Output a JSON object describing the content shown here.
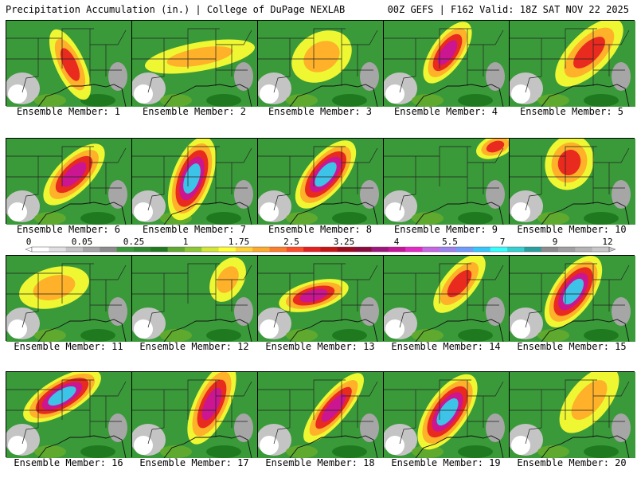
{
  "header": {
    "title_left": "Precipitation Accumulation (in.) | College of DuPage NEXLAB",
    "title_right": "00Z GEFS | F162 Valid: 18Z SAT NOV 22 2025"
  },
  "colorbar": {
    "labels": [
      "0",
      "0.05",
      "0.25",
      "1",
      "1.75",
      "2.5",
      "3.25",
      "4",
      "5.5",
      "7",
      "9",
      "12"
    ],
    "colors": [
      "#ffffff",
      "#e0e0e0",
      "#c4c4c4",
      "#a6a6a6",
      "#8c8c8c",
      "#3a9a3a",
      "#2e8a2e",
      "#1f7a1f",
      "#5faa2e",
      "#8cc832",
      "#d2e632",
      "#ffff32",
      "#ffd232",
      "#ffaa28",
      "#ff7d28",
      "#ff4b28",
      "#e61e1e",
      "#c81414",
      "#a00a1e",
      "#8c0a3c",
      "#a0147d",
      "#c8149b",
      "#e628c8",
      "#c864e6",
      "#9b82f0",
      "#6e9bff",
      "#32c8ff",
      "#32ffff",
      "#32d2d2",
      "#28a0a0",
      "#8c8c8c",
      "#a0a0a0",
      "#b4b4b4",
      "#c8c8c8"
    ]
  },
  "members": [
    {
      "id": 1,
      "label": "Ensemble Member: 1"
    },
    {
      "id": 2,
      "label": "Ensemble Member: 2"
    },
    {
      "id": 3,
      "label": "Ensemble Member: 3"
    },
    {
      "id": 4,
      "label": "Ensemble Member: 4"
    },
    {
      "id": 5,
      "label": "Ensemble Member: 5"
    },
    {
      "id": 6,
      "label": "Ensemble Member: 6"
    },
    {
      "id": 7,
      "label": "Ensemble Member: 7"
    },
    {
      "id": 8,
      "label": "Ensemble Member: 8"
    },
    {
      "id": 9,
      "label": "Ensemble Member: 9"
    },
    {
      "id": 10,
      "label": "Ensemble Member: 10"
    },
    {
      "id": 11,
      "label": "Ensemble Member: 11"
    },
    {
      "id": 12,
      "label": "Ensemble Member: 12"
    },
    {
      "id": 13,
      "label": "Ensemble Member: 13"
    },
    {
      "id": 14,
      "label": "Ensemble Member: 14"
    },
    {
      "id": 15,
      "label": "Ensemble Member: 15"
    },
    {
      "id": 16,
      "label": "Ensemble Member: 16"
    },
    {
      "id": 17,
      "label": "Ensemble Member: 17"
    },
    {
      "id": 18,
      "label": "Ensemble Member: 18"
    },
    {
      "id": 19,
      "label": "Ensemble Member: 19"
    },
    {
      "id": 20,
      "label": "Ensemble Member: 20"
    }
  ]
}
